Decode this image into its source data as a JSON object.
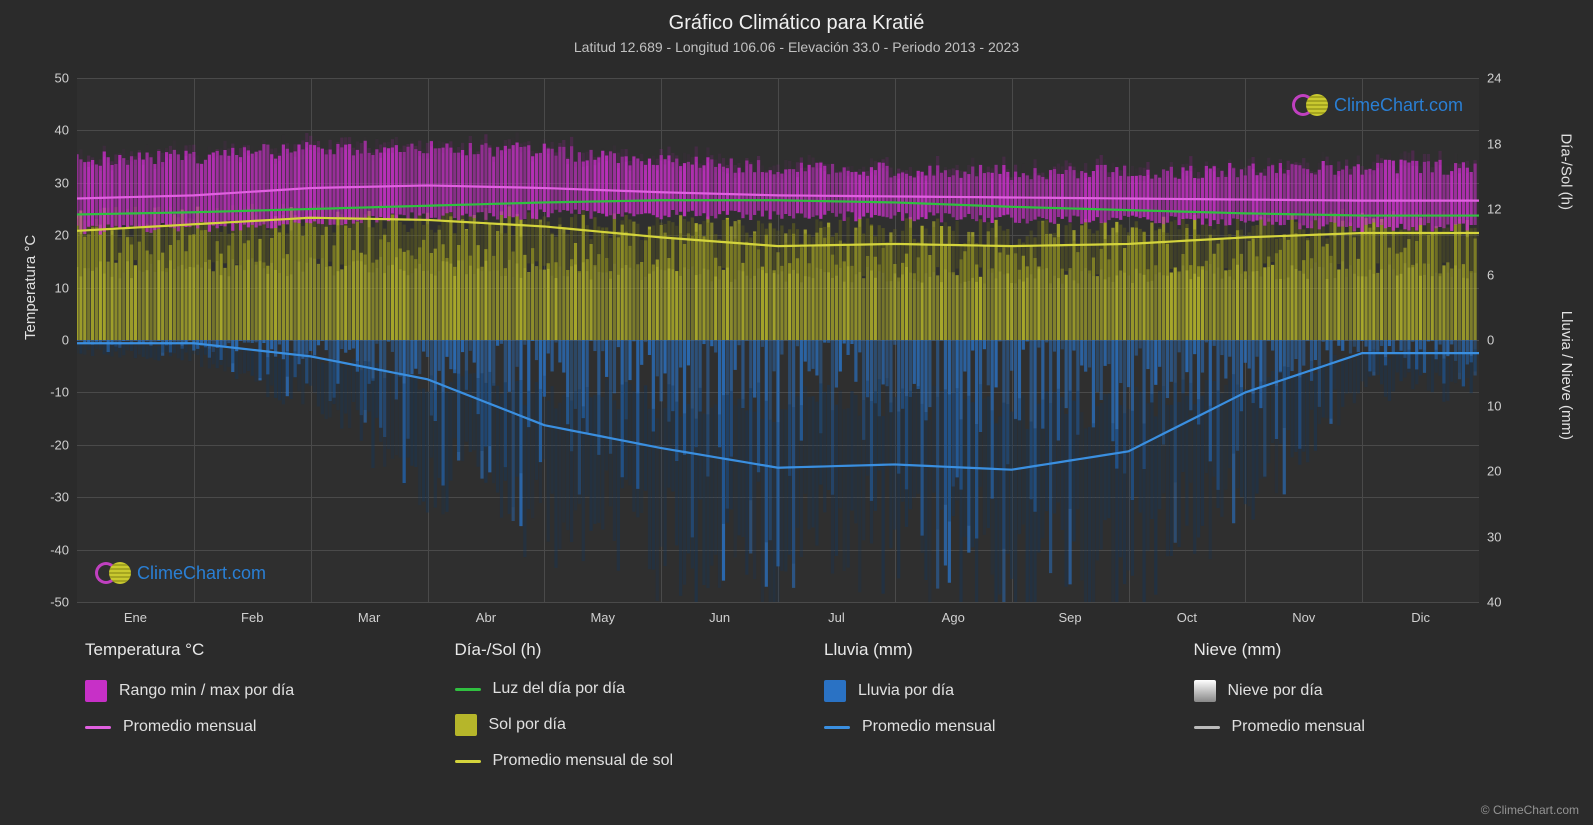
{
  "title": "Gráfico Climático para Kratié",
  "subtitle": "Latitud 12.689 - Longitud 106.06 - Elevación 33.0 - Periodo 2013 - 2023",
  "watermark_text": "ClimeChart.com",
  "copyright": "© ClimeChart.com",
  "axes": {
    "y_left_label": "Temperatura °C",
    "y_right_top_label": "Día-/Sol (h)",
    "y_right_bottom_label": "Lluvia / Nieve (mm)",
    "y_left": {
      "min": -50,
      "max": 50,
      "ticks": [
        -50,
        -40,
        -30,
        -20,
        -10,
        0,
        10,
        20,
        30,
        40,
        50
      ]
    },
    "y_right_top": {
      "min": 0,
      "max": 24,
      "ticks": [
        0,
        6,
        12,
        18,
        24
      ]
    },
    "y_right_bottom": {
      "min": 40,
      "max": 0,
      "ticks": [
        0,
        10,
        20,
        30,
        40
      ]
    },
    "x_months": [
      "Ene",
      "Feb",
      "Mar",
      "Abr",
      "May",
      "Jun",
      "Jul",
      "Ago",
      "Sep",
      "Oct",
      "Nov",
      "Dic"
    ]
  },
  "colors": {
    "background": "#2b2b2b",
    "plot_bg": "#2f2f2f",
    "grid": "#4a4a4a",
    "temp_band": "#c730c7",
    "temp_band_edge": "#92208f",
    "temp_avg_line": "#e060e0",
    "sun_bars": "#b6b62a",
    "sun_bars_dark": "#6a6a1a",
    "sun_avg_line": "#d4d43c",
    "daylight_line": "#30c040",
    "rain_bars": "#2a72c4",
    "rain_bars_dark": "#13365c",
    "rain_avg_line": "#3a8fe0",
    "snow_swatch": "#cccccc",
    "snow_line": "#bbbbbb",
    "watermark_text": "#2a7fd4",
    "text": "#e0e0e0"
  },
  "series": {
    "temp_avg_c": [
      27.0,
      27.6,
      29.0,
      29.5,
      29.0,
      28.2,
      27.6,
      27.4,
      27.2,
      27.0,
      26.8,
      26.6
    ],
    "temp_band_top_c": [
      34.5,
      35.0,
      36.5,
      37.0,
      36.0,
      34.0,
      33.0,
      32.5,
      32.0,
      32.0,
      32.5,
      33.0
    ],
    "temp_band_bottom_c": [
      21.0,
      21.5,
      22.5,
      23.5,
      24.0,
      24.0,
      23.8,
      23.5,
      23.2,
      23.0,
      22.5,
      21.5
    ],
    "daylight_h": [
      11.5,
      11.7,
      12.0,
      12.3,
      12.6,
      12.8,
      12.8,
      12.6,
      12.2,
      11.9,
      11.6,
      11.4
    ],
    "sun_avg_h": [
      10.0,
      10.6,
      11.2,
      11.0,
      10.4,
      9.4,
      8.6,
      8.8,
      8.6,
      8.8,
      9.4,
      9.8
    ],
    "sun_daily_max_h": [
      11.0,
      11.2,
      11.5,
      11.6,
      11.0,
      10.5,
      10.2,
      10.3,
      10.0,
      10.2,
      10.8,
      11.0
    ],
    "rain_avg_mm": [
      0.5,
      0.5,
      2.5,
      6.0,
      13.0,
      16.5,
      19.5,
      19.0,
      19.8,
      17.0,
      8.0,
      2.0
    ],
    "rain_daily_max_mm": [
      2,
      3,
      10,
      22,
      30,
      34,
      36,
      32,
      38,
      38,
      25,
      8
    ]
  },
  "legend": {
    "temp_header": "Temperatura °C",
    "temp_item1": "Rango min / max por día",
    "temp_item2": "Promedio mensual",
    "sun_header": "Día-/Sol (h)",
    "sun_item1": "Luz del día por día",
    "sun_item2": "Sol por día",
    "sun_item3": "Promedio mensual de sol",
    "rain_header": "Lluvia (mm)",
    "rain_item1": "Lluvia por día",
    "rain_item2": "Promedio mensual",
    "snow_header": "Nieve (mm)",
    "snow_item1": "Nieve por día",
    "snow_item2": "Promedio mensual"
  }
}
